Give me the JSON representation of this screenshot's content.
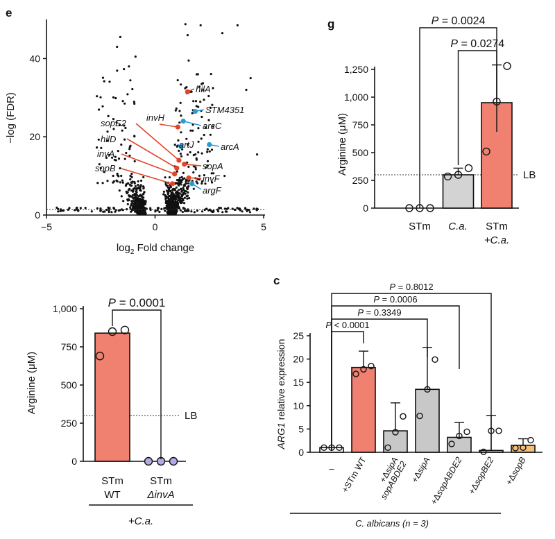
{
  "panels": {
    "e": {
      "letter": "e",
      "chart_data": {
        "type": "scatter",
        "title": "",
        "xlabel": "log2 Fold change",
        "ylabel": "−log (FDR)",
        "xlim": [
          -5,
          5
        ],
        "ylim": [
          0,
          50
        ],
        "xticks": [
          "−5",
          "0",
          "5"
        ],
        "yticks": [
          "0",
          "20",
          "40"
        ],
        "threshold_y": 1.3,
        "highlighted": [
          {
            "name": "hilA",
            "x": 1.5,
            "y": 31.5,
            "color": "#e0452a"
          },
          {
            "name": "STM4351",
            "x": 1.85,
            "y": 26.5,
            "color": "#2b9ad6"
          },
          {
            "name": "invH",
            "x": 1.05,
            "y": 22.5,
            "color": "#e0452a"
          },
          {
            "name": "arcC",
            "x": 1.3,
            "y": 24.0,
            "color": "#2b9ad6"
          },
          {
            "name": "artJ",
            "x": 1.2,
            "y": 17.5,
            "color": "#2b9ad6"
          },
          {
            "name": "arcA",
            "x": 2.5,
            "y": 18.0,
            "color": "#2b9ad6"
          },
          {
            "name": "sopE2",
            "x": 1.1,
            "y": 14.0,
            "color": "#e0452a"
          },
          {
            "name": "hilD",
            "x": 1.0,
            "y": 12.0,
            "color": "#e0452a"
          },
          {
            "name": "invA",
            "x": 0.9,
            "y": 10.5,
            "color": "#e0452a"
          },
          {
            "name": "sopB",
            "x": 0.8,
            "y": 8.0,
            "color": "#e0452a"
          },
          {
            "name": "sopA",
            "x": 1.35,
            "y": 13.0,
            "color": "#e0452a"
          },
          {
            "name": "invF",
            "x": 1.55,
            "y": 9.5,
            "color": "#e0452a"
          },
          {
            "name": "argF",
            "x": 1.7,
            "y": 8.0,
            "color": "#2b9ad6"
          }
        ]
      }
    },
    "g": {
      "letter": "g",
      "chart_data": {
        "type": "bar",
        "categories": [
          "STm",
          "C.a.",
          "STm +C.a."
        ],
        "values": [
          0,
          300,
          950
        ],
        "errors": [
          0,
          60,
          340
        ],
        "points": [
          [
            0,
            0,
            0
          ],
          [
            285,
            300,
            360
          ],
          [
            510,
            960,
            1280
          ]
        ],
        "colors": [
          "#ffffff",
          "#d3d3d3",
          "#f08070"
        ],
        "ylabel": "Arginine (μM)",
        "ylim": [
          0,
          1250
        ],
        "yticks": [
          "0",
          "250",
          "500",
          "750",
          "1,000",
          "1,250"
        ],
        "reference": {
          "label": "LB",
          "value": 300
        },
        "comparisons": [
          {
            "label": "P = 0.0024",
            "from": 0,
            "to": 2
          },
          {
            "label": "P = 0.0274",
            "from": 1,
            "to": 2
          }
        ]
      }
    },
    "left": {
      "chart_data": {
        "type": "bar",
        "categories": [
          "STm WT",
          "STm ΔinvA"
        ],
        "values": [
          840,
          0
        ],
        "points": [
          [
            690,
            850,
            860
          ],
          [
            0,
            0,
            0
          ]
        ],
        "colors": [
          "#f08070",
          "#b6a8e6"
        ],
        "ylabel": "Arginine (μM)",
        "ylim": [
          0,
          1000
        ],
        "yticks": [
          "0",
          "250",
          "500",
          "750",
          "1,000"
        ],
        "reference": {
          "label": "LB",
          "value": 300
        },
        "comparisons": [
          {
            "label": "P = 0.0001",
            "from": 0,
            "to": 1
          }
        ],
        "group_label": "+C.a."
      }
    },
    "c": {
      "letter": "c",
      "chart_data": {
        "type": "bar",
        "categories": [
          "–",
          "+STm WT",
          "+ΔsipA sopABDE2",
          "+ΔsipA",
          "+ΔsopABDE2",
          "+ΔsopBE2",
          "+ΔsopB"
        ],
        "values": [
          1.0,
          18.2,
          4.6,
          13.5,
          3.2,
          0.4,
          1.5
        ],
        "errors": [
          0,
          3.5,
          6.0,
          9.0,
          3.2,
          7.5,
          1.4
        ],
        "points": [
          [
            1,
            1,
            1
          ],
          [
            16.8,
            17.8,
            18.5
          ],
          [
            1.0,
            4.3,
            7.7
          ],
          [
            7.8,
            13.5,
            19.9
          ],
          [
            1.8,
            3.5,
            4.4
          ],
          [
            0.1,
            4.6,
            4.6
          ],
          [
            0.9,
            1.0,
            2.6
          ]
        ],
        "colors": [
          "#ffffff",
          "#f08070",
          "#c8c8c8",
          "#c8c8c8",
          "#c8c8c8",
          "#c8c8c8",
          "#f3bf7a"
        ],
        "ylabel": "ARG1 relative expression",
        "ylim": [
          0,
          25
        ],
        "yticks": [
          "0",
          "5",
          "10",
          "15",
          "20",
          "25"
        ],
        "comparisons": [
          {
            "label": "P = 0.8012",
            "from": 0,
            "to": 5
          },
          {
            "label": "P = 0.0006",
            "from": 0,
            "to": 4
          },
          {
            "label": "P = 0.3349",
            "from": 0,
            "to": 3
          },
          {
            "label": "P < 0.0001",
            "from": 0,
            "to": 1
          }
        ],
        "group_label": "C. albicans (n = 3)"
      }
    }
  },
  "text": {
    "e_x_log": "log",
    "e_x_sub": "2",
    "e_x_rest": " Fold change",
    "e_ylabel": "−log (FDR)",
    "g_cat_stm": "STm",
    "g_cat_ca": "C.a.",
    "g_cat_stmca_1": "STm",
    "g_cat_stmca_2": "+C.a.",
    "left_cat_wt_1": "STm",
    "left_cat_wt_2": "WT",
    "left_cat_inv_1": "STm",
    "left_cat_inv_2": "ΔinvA",
    "c_ylabel_gene": "ARG1",
    "c_ylabel_rest": " relative expression"
  }
}
